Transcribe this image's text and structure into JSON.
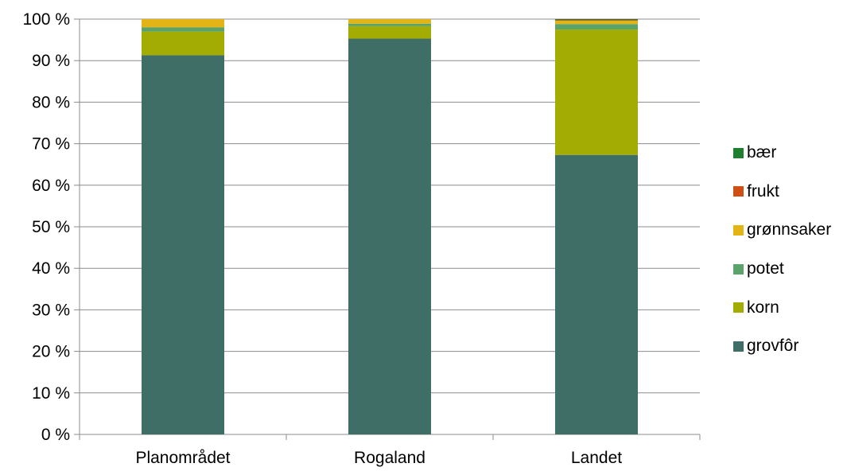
{
  "chart_data": {
    "type": "bar",
    "stacked": true,
    "percent": true,
    "categories": [
      "Planområdet",
      "Rogaland",
      "Landet"
    ],
    "series": [
      {
        "name": "grovfôr",
        "color": "#3e6e66",
        "values": [
          91.3,
          95.3,
          67.3
        ]
      },
      {
        "name": "korn",
        "color": "#a3ac03",
        "values": [
          5.7,
          3.0,
          30.2
        ]
      },
      {
        "name": "potet",
        "color": "#5aa36a",
        "values": [
          1.0,
          0.6,
          1.3
        ]
      },
      {
        "name": "grønnsaker",
        "color": "#e3b415",
        "values": [
          2.0,
          1.1,
          0.8
        ]
      },
      {
        "name": "frukt",
        "color": "#d04f14",
        "values": [
          0.0,
          0.0,
          0.2
        ]
      },
      {
        "name": "bær",
        "color": "#1e7f2e",
        "values": [
          0.0,
          0.0,
          0.2
        ]
      }
    ],
    "ylim": [
      0,
      100
    ],
    "yticks": [
      "0 %",
      "10 %",
      "20 %",
      "30 %",
      "40 %",
      "50 %",
      "60 %",
      "70 %",
      "80 %",
      "90 %",
      "100 %"
    ],
    "grid": true,
    "legend_position": "right",
    "title": "",
    "xlabel": "",
    "ylabel": ""
  }
}
